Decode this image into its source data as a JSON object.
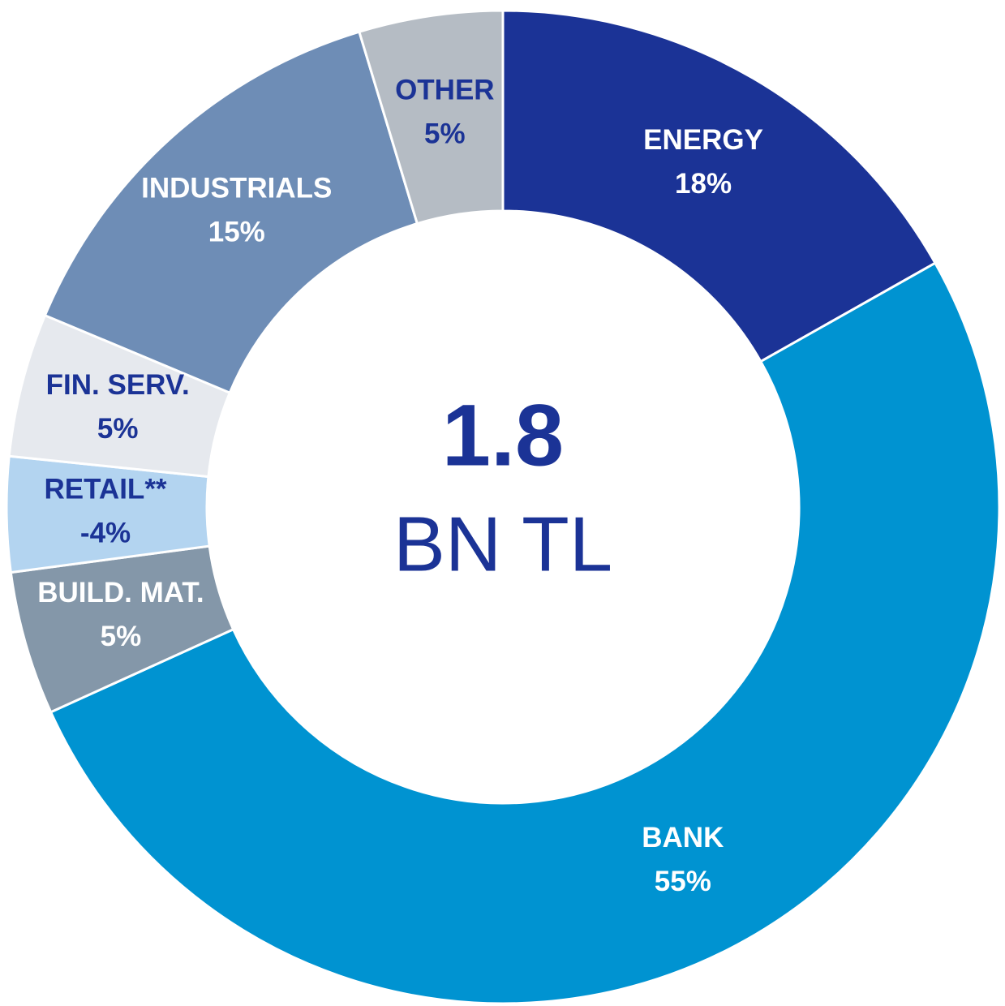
{
  "chart_data": {
    "type": "donut",
    "categories": [
      "ENERGY",
      "BANK",
      "BUILD. MAT.",
      "RETAIL**",
      "FIN. SERV.",
      "INDUSTRIALS",
      "OTHER"
    ],
    "values": [
      18,
      55,
      5,
      -4,
      5,
      15,
      5
    ],
    "value_labels": [
      "18%",
      "55%",
      "5%",
      "-4%",
      "5%",
      "15%",
      "5%"
    ],
    "colors": [
      "#1b3396",
      "#0093d1",
      "#8497a9",
      "#b3d4f0",
      "#e6e9ee",
      "#6e8db6",
      "#b5bcc4"
    ],
    "label_colors": [
      "#ffffff",
      "#ffffff",
      "#ffffff",
      "#1b3396",
      "#1b3396",
      "#ffffff",
      "#1b3396"
    ],
    "center_value": "1.8",
    "center_unit": "BN TL"
  }
}
